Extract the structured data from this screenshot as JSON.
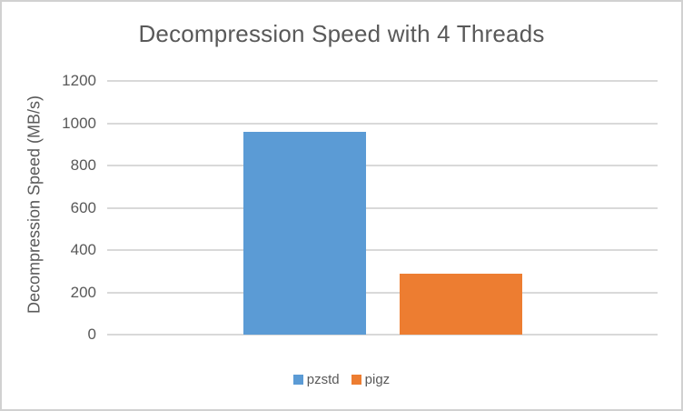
{
  "window": {
    "background": "#ffffff",
    "border_color": "#d1d1d1"
  },
  "chart_data": {
    "type": "bar",
    "title": "Decompression Speed with 4 Threads",
    "xlabel": "",
    "ylabel": "Decompression Speed (MB/s)",
    "categories": [
      ""
    ],
    "series": [
      {
        "name": "pzstd",
        "values": [
          960
        ],
        "color": "#5B9BD5"
      },
      {
        "name": "pigz",
        "values": [
          290
        ],
        "color": "#ED7D31"
      }
    ],
    "ylim": [
      0,
      1200
    ],
    "yticks": [
      0,
      200,
      400,
      600,
      800,
      1000,
      1200
    ],
    "grid": true,
    "legend_position": "bottom",
    "gridline_color": "#d9d9d9",
    "text_color": "#595959"
  }
}
